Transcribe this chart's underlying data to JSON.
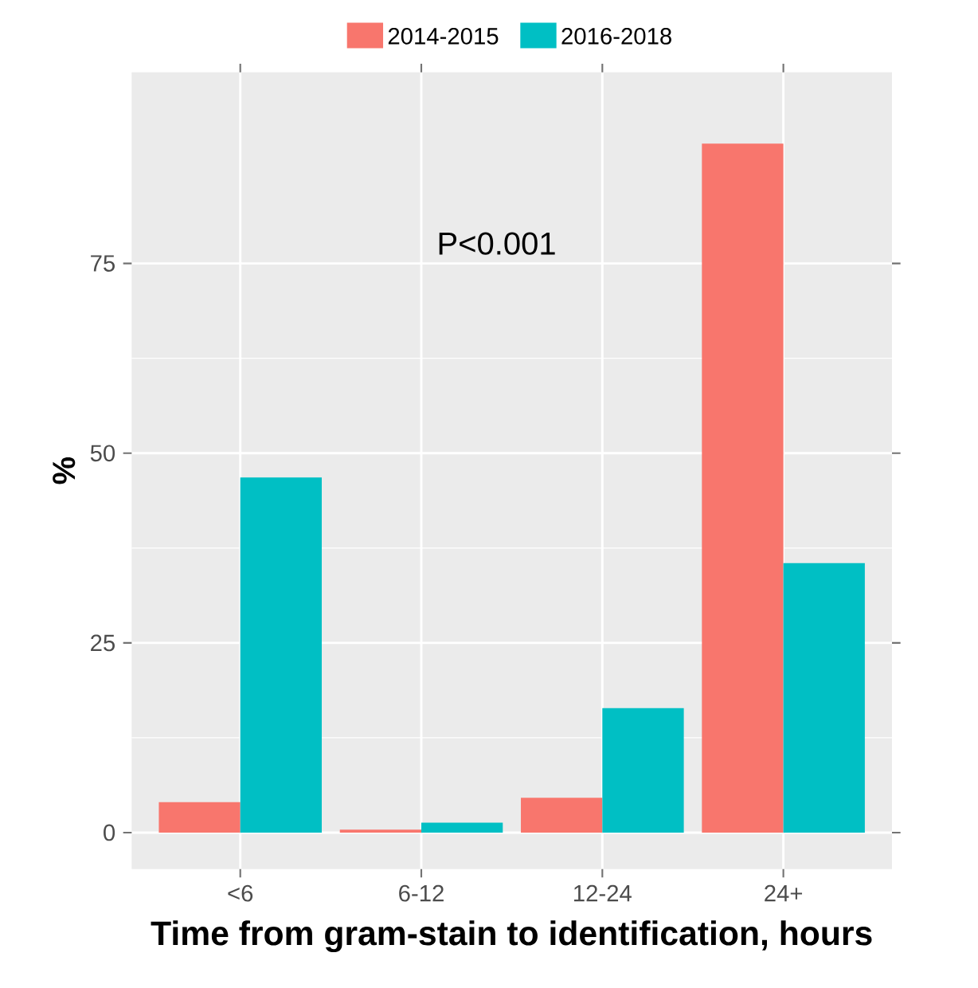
{
  "chart_data": {
    "type": "bar",
    "xlabel": "Time from gram-stain to identification, hours",
    "ylabel": "%",
    "categories": [
      "<6",
      "6-12",
      "12-24",
      "24+"
    ],
    "series": [
      {
        "name": "2014-2015",
        "color": "#f8766d",
        "values": [
          4.0,
          0.4,
          4.6,
          90.8
        ]
      },
      {
        "name": "2016-2018",
        "color": "#00bfc4",
        "values": [
          46.8,
          1.3,
          16.4,
          35.5
        ]
      }
    ],
    "ylim": [
      -4.8,
      100.2
    ],
    "yticks": [
      0,
      25,
      50,
      75
    ],
    "grid": true,
    "legend": "top",
    "annotations": [
      "P<0.001"
    ]
  }
}
